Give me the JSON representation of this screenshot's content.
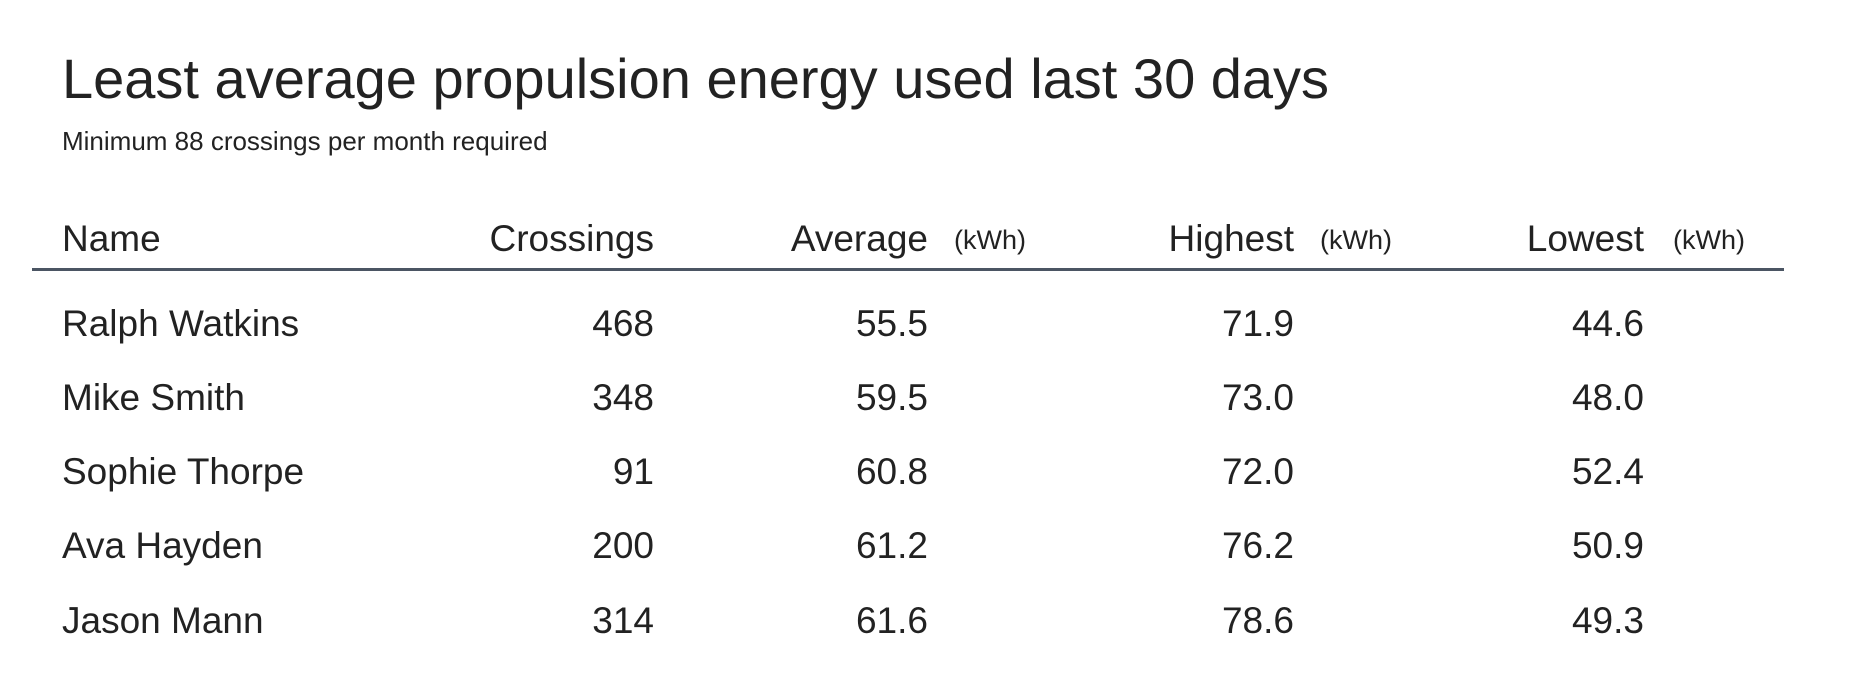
{
  "title": "Least average propulsion energy used last 30 days",
  "subtitle": "Minimum 88 crossings per month required",
  "columns": {
    "name": "Name",
    "crossings": "Crossings",
    "average": "Average",
    "highest": "Highest",
    "lowest": "Lowest",
    "unit": "(kWh)"
  },
  "rows": [
    {
      "name": "Ralph Watkins",
      "crossings": "468",
      "average": "55.5",
      "highest": "71.9",
      "lowest": "44.6"
    },
    {
      "name": "Mike Smith",
      "crossings": "348",
      "average": "59.5",
      "highest": "73.0",
      "lowest": "48.0"
    },
    {
      "name": "Sophie Thorpe",
      "crossings": "91",
      "average": "60.8",
      "highest": "72.0",
      "lowest": "52.4"
    },
    {
      "name": "Ava Hayden",
      "crossings": "200",
      "average": "61.2",
      "highest": "76.2",
      "lowest": "50.9"
    },
    {
      "name": "Jason Mann",
      "crossings": "314",
      "average": "61.6",
      "highest": "78.6",
      "lowest": "49.3"
    }
  ]
}
